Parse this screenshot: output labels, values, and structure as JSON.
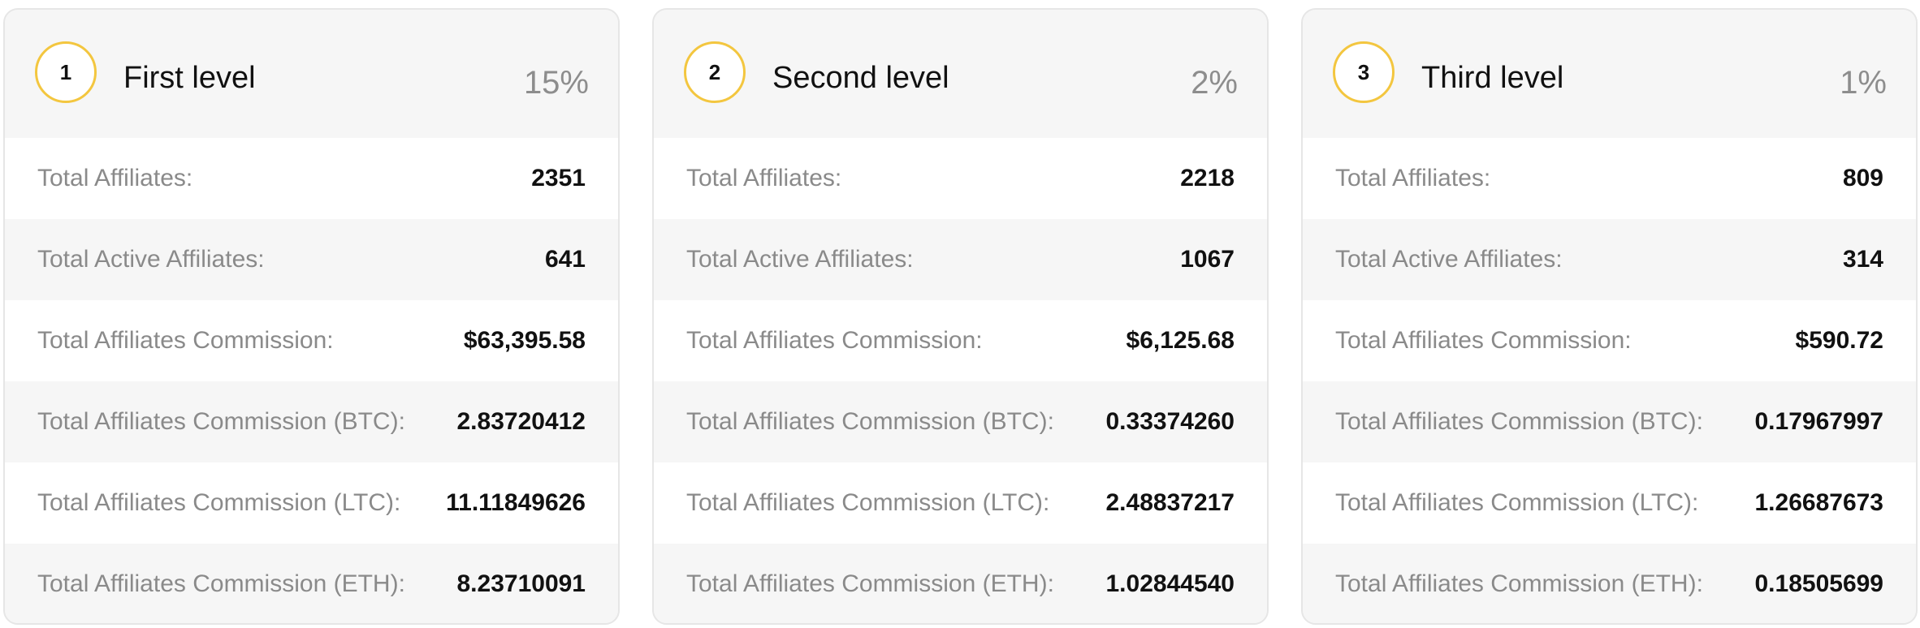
{
  "levels": [
    {
      "number": "1",
      "title": "First level",
      "percent": "15%",
      "rows": [
        {
          "label": "Total Affiliates:",
          "value": "2351"
        },
        {
          "label": "Total Active Affiliates:",
          "value": "641"
        },
        {
          "label": "Total Affiliates Commission:",
          "value": "$63,395.58"
        },
        {
          "label": "Total Affiliates Commission (BTC):",
          "value": "2.83720412"
        },
        {
          "label": "Total Affiliates Commission (LTC):",
          "value": "11.11849626"
        },
        {
          "label": "Total Affiliates Commission (ETH):",
          "value": "8.23710091"
        }
      ]
    },
    {
      "number": "2",
      "title": "Second level",
      "percent": "2%",
      "rows": [
        {
          "label": "Total Affiliates:",
          "value": "2218"
        },
        {
          "label": "Total Active Affiliates:",
          "value": "1067"
        },
        {
          "label": "Total Affiliates Commission:",
          "value": "$6,125.68"
        },
        {
          "label": "Total Affiliates Commission (BTC):",
          "value": "0.33374260"
        },
        {
          "label": "Total Affiliates Commission (LTC):",
          "value": "2.48837217"
        },
        {
          "label": "Total Affiliates Commission (ETH):",
          "value": "1.02844540"
        }
      ]
    },
    {
      "number": "3",
      "title": "Third level",
      "percent": "1%",
      "rows": [
        {
          "label": "Total Affiliates:",
          "value": "809"
        },
        {
          "label": "Total Active Affiliates:",
          "value": "314"
        },
        {
          "label": "Total Affiliates Commission:",
          "value": "$590.72"
        },
        {
          "label": "Total Affiliates Commission (BTC):",
          "value": "0.17967997"
        },
        {
          "label": "Total Affiliates Commission (LTC):",
          "value": "1.26687673"
        },
        {
          "label": "Total Affiliates Commission (ETH):",
          "value": "0.18505699"
        }
      ]
    }
  ],
  "colors": {
    "badge_ring": "#f3c63f",
    "card_bg": "#f6f6f6",
    "row_alt_bg": "#ffffff",
    "label_text": "#8a8a8a",
    "value_text": "#111111",
    "percent_text": "#8d8d8d"
  }
}
